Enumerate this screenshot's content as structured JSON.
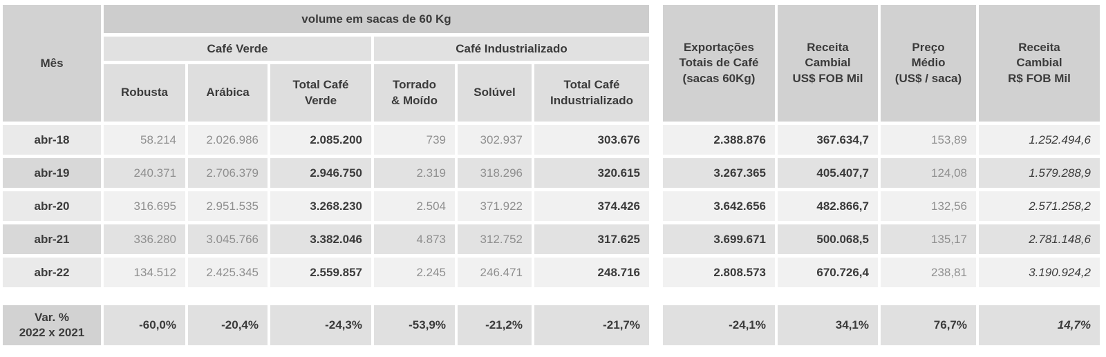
{
  "colors": {
    "header_dark": "#d1d1d1",
    "title_band": "#cdcdcd",
    "group_band": "#e1e1e1",
    "subheader": "#dedede",
    "row_light": "#f1f1f1",
    "row_dark": "#e2e2e2",
    "text_dark": "#3b3b3b",
    "text_gray": "#8f8f8f"
  },
  "header": {
    "mes": "Mês",
    "volume_title": "volume em sacas de 60 Kg",
    "group_verde": "Café Verde",
    "group_industrializado": "Café Industrializado",
    "subheaders": [
      "Robusta",
      "Arábica",
      "Total Café\nVerde",
      "Torrado\n& Moído",
      "Solúvel",
      "Total Café\nIndustrializado"
    ],
    "right_headers": [
      "Exportações\nTotais de Café\n(sacas 60Kg)",
      "Receita\nCambial\nUS$ FOB Mil",
      "Preço\nMédio\n(US$ / saca)",
      "Receita\nCambial\nR$ FOB Mil"
    ]
  },
  "chart_data": {
    "type": "table",
    "title": "volume em sacas de 60 Kg",
    "row_header": "Mês",
    "column_groups": [
      {
        "label": "Café Verde",
        "columns": [
          "Robusta",
          "Arábica",
          "Total Café Verde"
        ]
      },
      {
        "label": "Café Industrializado",
        "columns": [
          "Torrado & Moído",
          "Solúvel",
          "Total Café Industrializado"
        ]
      }
    ],
    "extra_columns": [
      "Exportações Totais de Café (sacas 60Kg)",
      "Receita Cambial US$ FOB Mil",
      "Preço Médio (US$ / saca)",
      "Receita Cambial R$ FOB Mil"
    ],
    "rows": [
      {
        "label": "abr-18",
        "values": [
          "58.214",
          "2.026.986",
          "2.085.200",
          "739",
          "302.937",
          "303.676",
          "2.388.876",
          "367.634,7",
          "153,89",
          "1.252.494,6"
        ]
      },
      {
        "label": "abr-19",
        "values": [
          "240.371",
          "2.706.379",
          "2.946.750",
          "2.319",
          "318.296",
          "320.615",
          "3.267.365",
          "405.407,7",
          "124,08",
          "1.579.288,9"
        ]
      },
      {
        "label": "abr-20",
        "values": [
          "316.695",
          "2.951.535",
          "3.268.230",
          "2.504",
          "371.922",
          "374.426",
          "3.642.656",
          "482.866,7",
          "132,56",
          "2.571.258,2"
        ]
      },
      {
        "label": "abr-21",
        "values": [
          "336.280",
          "3.045.766",
          "3.382.046",
          "4.873",
          "312.752",
          "317.625",
          "3.699.671",
          "500.068,5",
          "135,17",
          "2.781.148,6"
        ]
      },
      {
        "label": "abr-22",
        "values": [
          "134.512",
          "2.425.345",
          "2.559.857",
          "2.245",
          "246.471",
          "248.716",
          "2.808.573",
          "670.726,4",
          "238,81",
          "3.190.924,2"
        ]
      }
    ],
    "variation": {
      "label": "Var. %\n2022 x 2021",
      "values": [
        "-60,0%",
        "-20,4%",
        "-24,3%",
        "-53,9%",
        "-21,2%",
        "-21,7%",
        "-24,1%",
        "34,1%",
        "76,7%",
        "14,7%"
      ]
    }
  }
}
